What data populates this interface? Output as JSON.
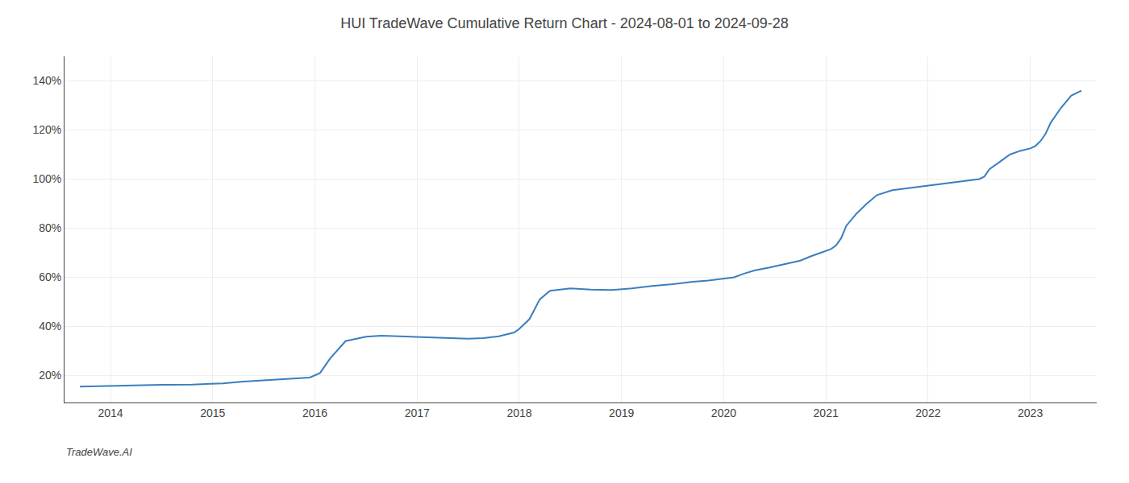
{
  "chart_data": {
    "type": "line",
    "title": "HUI TradeWave Cumulative Return Chart - 2024-08-01 to 2024-09-28",
    "annotations": [
      "TradeWave.AI"
    ],
    "x": [
      2013.7,
      2014.0,
      2014.2,
      2014.5,
      2014.8,
      2014.95,
      2015.1,
      2015.3,
      2015.6,
      2015.85,
      2015.95,
      2016.05,
      2016.15,
      2016.3,
      2016.5,
      2016.65,
      2016.8,
      2016.95,
      2017.1,
      2017.3,
      2017.5,
      2017.65,
      2017.8,
      2017.95,
      2018.0,
      2018.1,
      2018.2,
      2018.3,
      2018.5,
      2018.7,
      2018.9,
      2019.1,
      2019.3,
      2019.5,
      2019.6,
      2019.7,
      2019.85,
      2019.95,
      2020.1,
      2020.2,
      2020.3,
      2020.45,
      2020.55,
      2020.65,
      2020.75,
      2020.85,
      2020.95,
      2021.05,
      2021.1,
      2021.15,
      2021.2,
      2021.3,
      2021.4,
      2021.5,
      2021.65,
      2021.8,
      2021.95,
      2022.0,
      2022.1,
      2022.2,
      2022.3,
      2022.4,
      2022.5,
      2022.55,
      2022.6,
      2022.7,
      2022.8,
      2022.9,
      2022.95,
      2023.0,
      2023.05,
      2023.1,
      2023.15,
      2023.2,
      2023.3,
      2023.4,
      2023.5
    ],
    "values": [
      0.155,
      0.158,
      0.16,
      0.162,
      0.163,
      0.165,
      0.168,
      0.175,
      0.183,
      0.188,
      0.192,
      0.21,
      0.27,
      0.34,
      0.358,
      0.362,
      0.36,
      0.358,
      0.355,
      0.352,
      0.35,
      0.352,
      0.36,
      0.375,
      0.39,
      0.43,
      0.51,
      0.545,
      0.555,
      0.55,
      0.548,
      0.555,
      0.565,
      0.572,
      0.578,
      0.582,
      0.587,
      0.592,
      0.6,
      0.615,
      0.628,
      0.64,
      0.65,
      0.66,
      0.668,
      0.685,
      0.7,
      0.715,
      0.73,
      0.76,
      0.81,
      0.86,
      0.9,
      0.935,
      0.955,
      0.963,
      0.97,
      0.975,
      0.98,
      0.985,
      0.99,
      0.995,
      1.0,
      1.01,
      1.04,
      1.07,
      1.1,
      1.115,
      1.12,
      1.125,
      1.135,
      1.155,
      1.185,
      1.23,
      1.29,
      1.34,
      1.36
    ],
    "color": "#3a7ebf",
    "xlim": [
      2013.55,
      2023.65
    ],
    "ylim": [
      0.09,
      1.5
    ],
    "xticks": [
      2014,
      2015,
      2016,
      2017,
      2018,
      2019,
      2020,
      2021,
      2022,
      2023
    ],
    "yticks": [
      {
        "value": 0.2,
        "label": "20%"
      },
      {
        "value": 0.4,
        "label": "40%"
      },
      {
        "value": 0.6,
        "label": "60%"
      },
      {
        "value": 0.8,
        "label": "80%"
      },
      {
        "value": 1.0,
        "label": "100%"
      },
      {
        "value": 1.2,
        "label": "120%"
      },
      {
        "value": 1.4,
        "label": "140%"
      }
    ],
    "grid": true
  }
}
